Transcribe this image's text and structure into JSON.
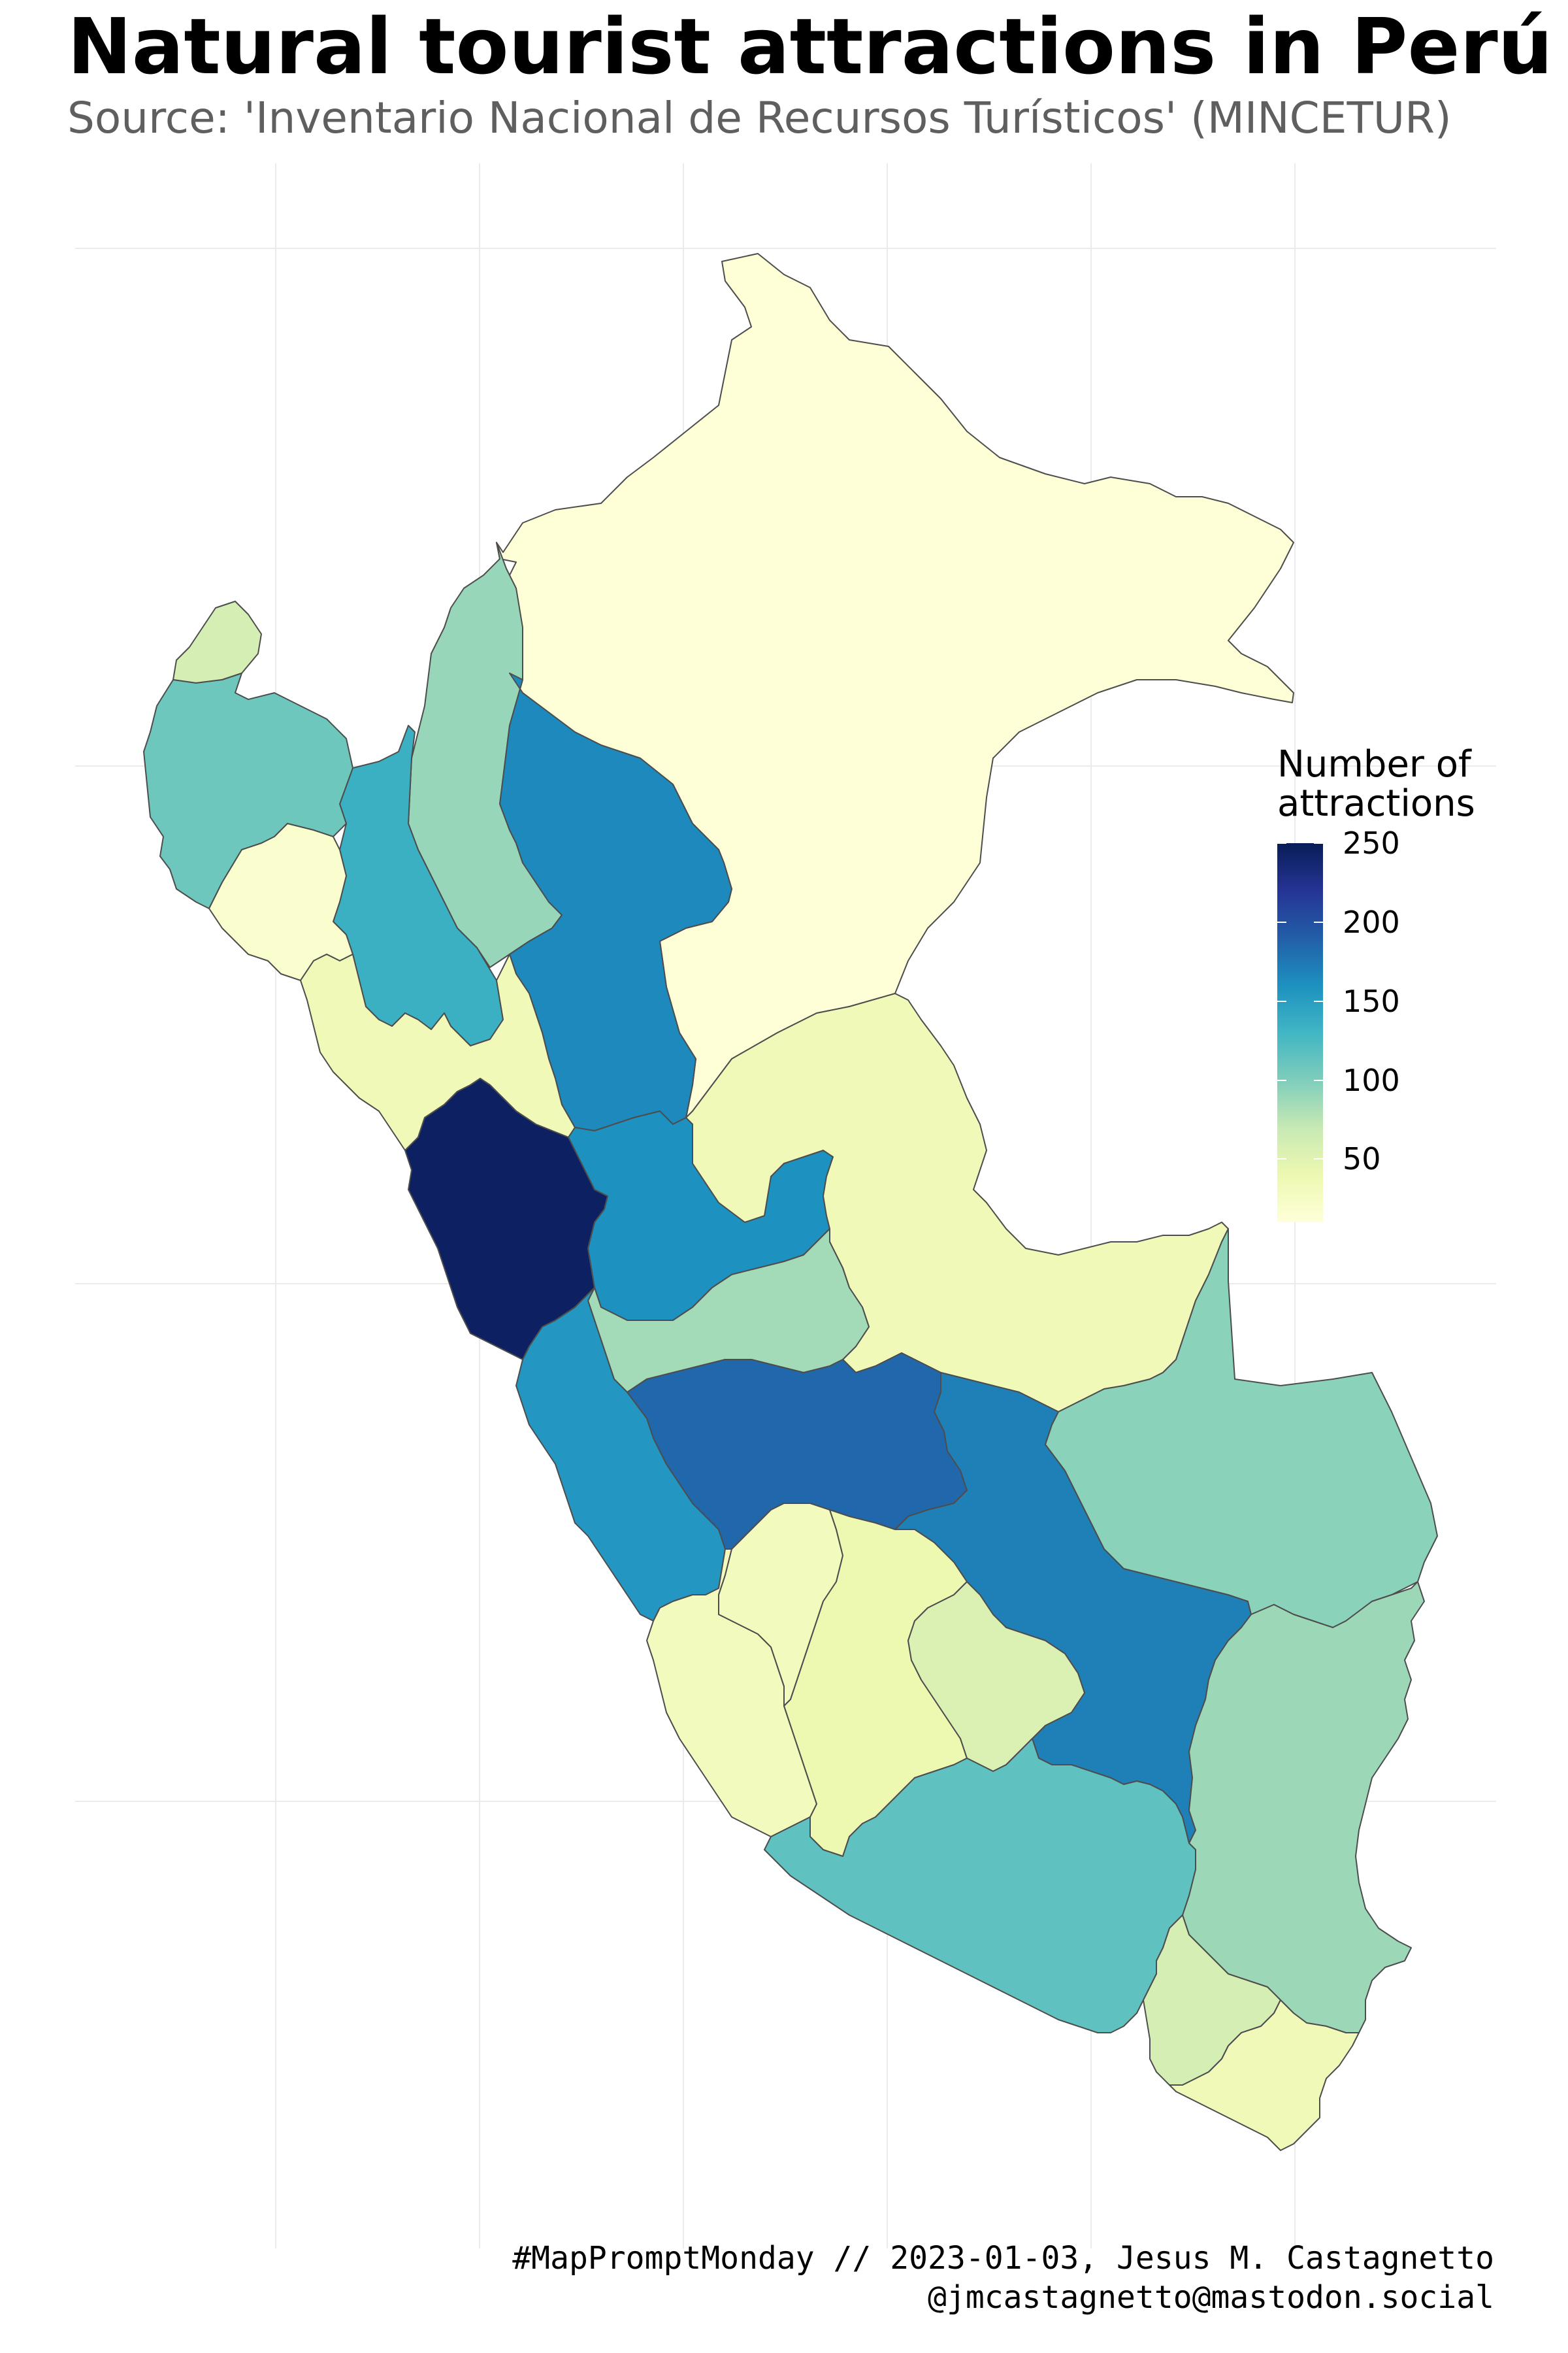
{
  "title": "Natural tourist attractions in Perú",
  "subtitle": "Source: 'Inventario Nacional de Recursos Turísticos' (MINCETUR)",
  "legend": {
    "title_line1": "Number of",
    "title_line2": "attractions",
    "min": 10,
    "max": 250,
    "ticks": [
      {
        "label": "250",
        "value": 250
      },
      {
        "label": "200",
        "value": 200
      },
      {
        "label": "150",
        "value": 150
      },
      {
        "label": "100",
        "value": 100
      },
      {
        "label": "50",
        "value": 50
      }
    ],
    "colors": [
      "#ffffd9",
      "#edf8b1",
      "#c7e9b4",
      "#7fcdbb",
      "#41b6c4",
      "#1d91c0",
      "#225ea8",
      "#253494",
      "#081d58"
    ]
  },
  "caption": {
    "line1": "#MapPromptMonday // 2023-01-03, Jesus M. Castagnetto",
    "line2": "@jmcastagnetto@mastodon.social"
  },
  "regions": [
    {
      "id": "loreto",
      "value": 12
    },
    {
      "id": "amazonas",
      "value": 90
    },
    {
      "id": "cajamarca",
      "value": 135
    },
    {
      "id": "tumbes",
      "value": 60
    },
    {
      "id": "piura",
      "value": 108
    },
    {
      "id": "lambayeque",
      "value": 18
    },
    {
      "id": "san-martin",
      "value": 165
    },
    {
      "id": "la-libertad",
      "value": 35
    },
    {
      "id": "ancash",
      "value": 245
    },
    {
      "id": "huanuco",
      "value": 160
    },
    {
      "id": "ucayali",
      "value": 35
    },
    {
      "id": "pasco",
      "value": 85
    },
    {
      "id": "lima",
      "value": 155
    },
    {
      "id": "junin",
      "value": 185
    },
    {
      "id": "cusco",
      "value": 170
    },
    {
      "id": "madre-de-dios",
      "value": 95
    },
    {
      "id": "puno",
      "value": 88
    },
    {
      "id": "ica",
      "value": 30
    },
    {
      "id": "huancavelica",
      "value": 30
    },
    {
      "id": "ayacucho",
      "value": 40
    },
    {
      "id": "apurimac",
      "value": 55
    },
    {
      "id": "arequipa",
      "value": 115
    },
    {
      "id": "moquegua",
      "value": 60
    },
    {
      "id": "tacna",
      "value": 35
    }
  ]
}
